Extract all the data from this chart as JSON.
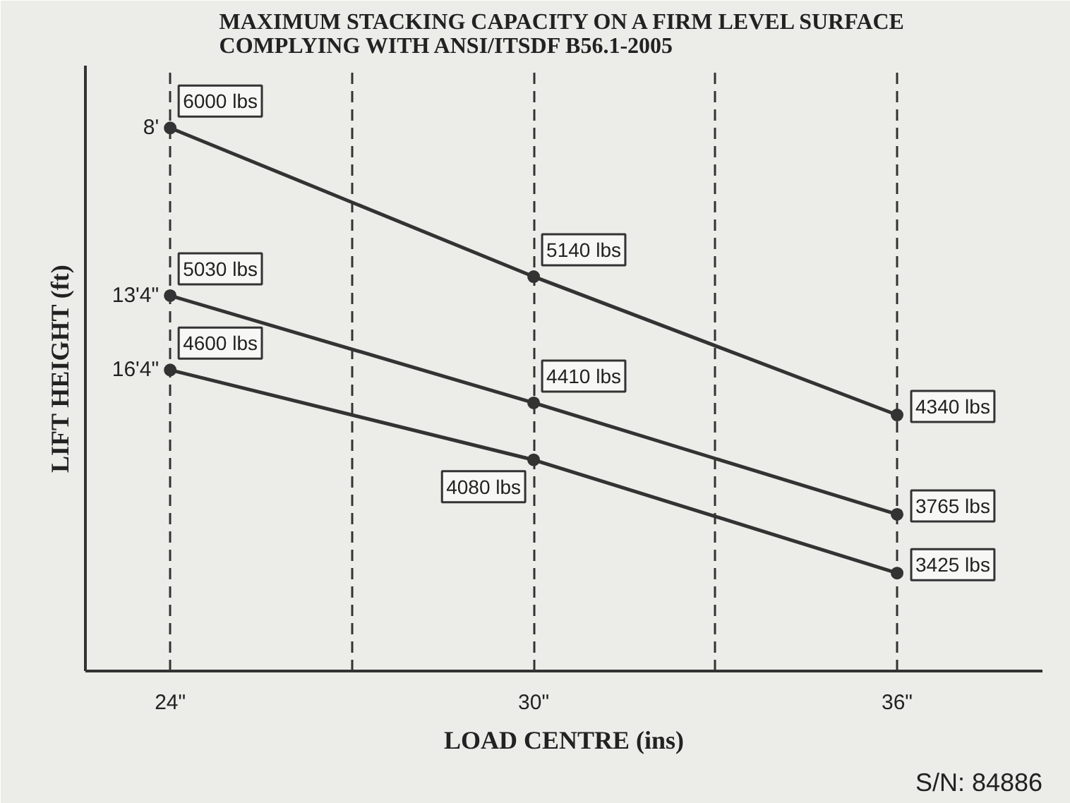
{
  "chart_data": {
    "type": "line",
    "title": "MAXIMUM STACKING CAPACITY ON A FIRM LEVEL SURFACE\nCOMPLYING WITH ANSI/ITSDF B56.1-2005",
    "xlabel": "LOAD CENTRE (ins)",
    "ylabel": "LIFT HEIGHT (ft)",
    "x": [
      24,
      30,
      36
    ],
    "xlim": [
      22.6,
      38.4
    ],
    "xticks": [
      {
        "value": 24,
        "label": "24\""
      },
      {
        "value": 27,
        "label": null
      },
      {
        "value": 30,
        "label": "30\""
      },
      {
        "value": 33,
        "label": null
      },
      {
        "value": 36,
        "label": "36\""
      }
    ],
    "series": [
      {
        "name": "16'4\"",
        "color": "#333333",
        "values": [
          4600,
          4080,
          3425
        ],
        "value_labels": [
          "4600 lbs",
          "4080 lbs",
          "3425 lbs"
        ]
      },
      {
        "name": "13'4\"",
        "color": "#333333",
        "values": [
          5030,
          4410,
          3765
        ],
        "value_labels": [
          "5030 lbs",
          "4410 lbs",
          "3765 lbs"
        ]
      },
      {
        "name": "8'",
        "color": "#333333",
        "values": [
          6000,
          5140,
          4340
        ],
        "value_labels": [
          "6000 lbs",
          "5140 lbs",
          "4340 lbs"
        ]
      }
    ],
    "grid": "x",
    "marker": "circle",
    "line_style": "solid",
    "tick_labels": "x",
    "annotations": [
      "S/N: 84886"
    ]
  }
}
